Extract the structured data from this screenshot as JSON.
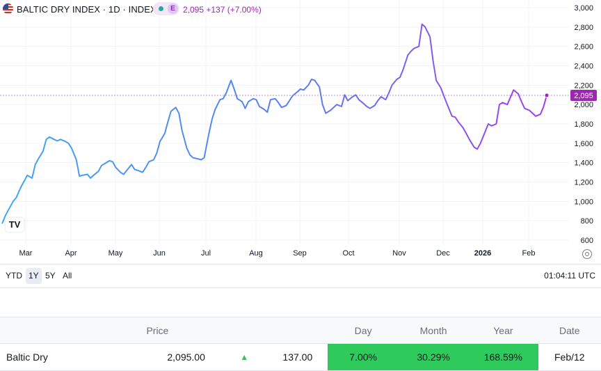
{
  "header": {
    "symbol_line": "BALTIC DRY INDEX · 1D · INDEX",
    "badge": "E",
    "last_line": "2,095 +137 (+7.00%)"
  },
  "chart_data": {
    "type": "line",
    "title": "BALTIC DRY INDEX · 1D · INDEX",
    "ylim": [
      600,
      3000
    ],
    "yticks": [
      "3,000",
      "2,800",
      "2,600",
      "2,400",
      "2,200",
      "2,000",
      "1,800",
      "1,600",
      "1,400",
      "1,200",
      "1,000",
      "800",
      "600"
    ],
    "xticks": [
      "Mar",
      "Apr",
      "May",
      "Jun",
      "Jul",
      "Aug",
      "Sep",
      "Oct",
      "Nov",
      "Dec",
      "2026",
      "Feb"
    ],
    "grid": true,
    "last_label": "2,095",
    "colors": {
      "start": "#42a5f5",
      "end": "#9c27b0",
      "line_ref": "#b388ff"
    },
    "series": [
      {
        "values": [
          [
            "2025-02-12",
            770
          ],
          [
            "2025-02-14",
            850
          ],
          [
            "2025-02-17",
            940
          ],
          [
            "2025-02-19",
            1000
          ],
          [
            "2025-02-21",
            1040
          ],
          [
            "2025-02-24",
            1150
          ],
          [
            "2025-02-26",
            1210
          ],
          [
            "2025-02-28",
            1270
          ],
          [
            "2025-03-03",
            1240
          ],
          [
            "2025-03-05",
            1380
          ],
          [
            "2025-03-07",
            1440
          ],
          [
            "2025-03-10",
            1520
          ],
          [
            "2025-03-12",
            1640
          ],
          [
            "2025-03-14",
            1665
          ],
          [
            "2025-03-17",
            1640
          ],
          [
            "2025-03-19",
            1625
          ],
          [
            "2025-03-21",
            1640
          ],
          [
            "2025-03-24",
            1620
          ],
          [
            "2025-03-26",
            1600
          ],
          [
            "2025-03-28",
            1550
          ],
          [
            "2025-03-31",
            1430
          ],
          [
            "2025-04-02",
            1260
          ],
          [
            "2025-04-04",
            1270
          ],
          [
            "2025-04-07",
            1280
          ],
          [
            "2025-04-09",
            1240
          ],
          [
            "2025-04-11",
            1270
          ],
          [
            "2025-04-14",
            1310
          ],
          [
            "2025-04-16",
            1370
          ],
          [
            "2025-04-18",
            1390
          ],
          [
            "2025-04-21",
            1420
          ],
          [
            "2025-04-23",
            1410
          ],
          [
            "2025-04-25",
            1350
          ],
          [
            "2025-04-28",
            1300
          ],
          [
            "2025-04-30",
            1280
          ],
          [
            "2025-05-02",
            1320
          ],
          [
            "2025-05-05",
            1380
          ],
          [
            "2025-05-07",
            1330
          ],
          [
            "2025-05-09",
            1320
          ],
          [
            "2025-05-12",
            1300
          ],
          [
            "2025-05-14",
            1350
          ],
          [
            "2025-05-16",
            1410
          ],
          [
            "2025-05-19",
            1430
          ],
          [
            "2025-05-21",
            1500
          ],
          [
            "2025-05-23",
            1620
          ],
          [
            "2025-05-26",
            1700
          ],
          [
            "2025-05-28",
            1820
          ],
          [
            "2025-05-30",
            1930
          ],
          [
            "2025-06-02",
            1970
          ],
          [
            "2025-06-04",
            1910
          ],
          [
            "2025-06-06",
            1730
          ],
          [
            "2025-06-09",
            1550
          ],
          [
            "2025-06-11",
            1480
          ],
          [
            "2025-06-13",
            1450
          ],
          [
            "2025-06-16",
            1440
          ],
          [
            "2025-06-18",
            1430
          ],
          [
            "2025-06-20",
            1450
          ],
          [
            "2025-06-23",
            1700
          ],
          [
            "2025-06-25",
            1850
          ],
          [
            "2025-06-27",
            1950
          ],
          [
            "2025-06-30",
            2050
          ],
          [
            "2025-07-02",
            2060
          ],
          [
            "2025-07-04",
            2120
          ],
          [
            "2025-07-07",
            2250
          ],
          [
            "2025-07-09",
            2160
          ],
          [
            "2025-07-11",
            2060
          ],
          [
            "2025-07-14",
            2030
          ],
          [
            "2025-07-16",
            1960
          ],
          [
            "2025-07-18",
            2030
          ],
          [
            "2025-07-21",
            2060
          ],
          [
            "2025-07-23",
            2050
          ],
          [
            "2025-07-25",
            1980
          ],
          [
            "2025-07-28",
            1950
          ],
          [
            "2025-07-30",
            1920
          ],
          [
            "2025-08-01",
            2050
          ],
          [
            "2025-08-04",
            2060
          ],
          [
            "2025-08-06",
            2020
          ],
          [
            "2025-08-08",
            1970
          ],
          [
            "2025-08-11",
            1990
          ],
          [
            "2025-08-13",
            2040
          ],
          [
            "2025-08-15",
            2090
          ],
          [
            "2025-08-18",
            2130
          ],
          [
            "2025-08-20",
            2160
          ],
          [
            "2025-08-22",
            2150
          ],
          [
            "2025-08-25",
            2200
          ],
          [
            "2025-08-27",
            2260
          ],
          [
            "2025-08-29",
            2250
          ],
          [
            "2025-09-01",
            2180
          ],
          [
            "2025-09-03",
            2000
          ],
          [
            "2025-09-05",
            1910
          ],
          [
            "2025-09-08",
            1940
          ],
          [
            "2025-09-10",
            1970
          ],
          [
            "2025-09-12",
            2000
          ],
          [
            "2025-09-15",
            1980
          ],
          [
            "2025-09-17",
            2100
          ],
          [
            "2025-09-19",
            2040
          ],
          [
            "2025-09-22",
            2080
          ],
          [
            "2025-09-24",
            2100
          ],
          [
            "2025-09-26",
            2050
          ],
          [
            "2025-09-29",
            2010
          ],
          [
            "2025-10-01",
            1980
          ],
          [
            "2025-10-03",
            1960
          ],
          [
            "2025-10-06",
            1990
          ],
          [
            "2025-10-08",
            2040
          ],
          [
            "2025-10-10",
            2080
          ],
          [
            "2025-10-13",
            2050
          ],
          [
            "2025-10-15",
            2120
          ],
          [
            "2025-10-17",
            2200
          ],
          [
            "2025-10-20",
            2260
          ],
          [
            "2025-10-22",
            2280
          ],
          [
            "2025-10-24",
            2360
          ],
          [
            "2025-10-27",
            2510
          ],
          [
            "2025-10-29",
            2550
          ],
          [
            "2025-10-31",
            2580
          ],
          [
            "2025-11-03",
            2600
          ],
          [
            "2025-11-05",
            2830
          ],
          [
            "2025-11-07",
            2800
          ],
          [
            "2025-11-10",
            2700
          ],
          [
            "2025-11-12",
            2450
          ],
          [
            "2025-11-14",
            2250
          ],
          [
            "2025-11-17",
            2170
          ],
          [
            "2025-11-19",
            2080
          ],
          [
            "2025-11-21",
            2000
          ],
          [
            "2025-11-24",
            1880
          ],
          [
            "2025-11-26",
            1870
          ],
          [
            "2025-11-28",
            1820
          ],
          [
            "2025-12-01",
            1760
          ],
          [
            "2025-12-03",
            1700
          ],
          [
            "2025-12-05",
            1640
          ],
          [
            "2025-12-08",
            1560
          ],
          [
            "2025-12-10",
            1540
          ],
          [
            "2025-12-12",
            1600
          ],
          [
            "2025-12-15",
            1720
          ],
          [
            "2025-12-17",
            1800
          ],
          [
            "2025-12-19",
            1780
          ],
          [
            "2025-12-22",
            1800
          ],
          [
            "2025-12-24",
            2000
          ],
          [
            "2025-12-26",
            2020
          ],
          [
            "2025-12-29",
            2000
          ],
          [
            "2026-01-02",
            2150
          ],
          [
            "2026-01-05",
            2110
          ],
          [
            "2026-01-07",
            2030
          ],
          [
            "2026-01-09",
            1960
          ],
          [
            "2026-01-12",
            1940
          ],
          [
            "2026-01-14",
            1910
          ],
          [
            "2026-01-16",
            1880
          ],
          [
            "2026-01-19",
            1900
          ],
          [
            "2026-01-21",
            1980
          ],
          [
            "2026-01-23",
            2095
          ]
        ]
      }
    ]
  },
  "toolbar": {
    "ranges": [
      "YTD",
      "1Y",
      "5Y",
      "All"
    ],
    "active_range": "1Y",
    "clock": "01:04:11 UTC"
  },
  "table": {
    "headers": {
      "price": "Price",
      "day": "Day",
      "month": "Month",
      "year": "Year",
      "date": "Date"
    },
    "row": {
      "name": "Baltic Dry",
      "price": "2,095.00",
      "change": "137.00",
      "day": "7.00%",
      "month": "30.29%",
      "year": "168.59%",
      "date": "Feb/12"
    }
  }
}
